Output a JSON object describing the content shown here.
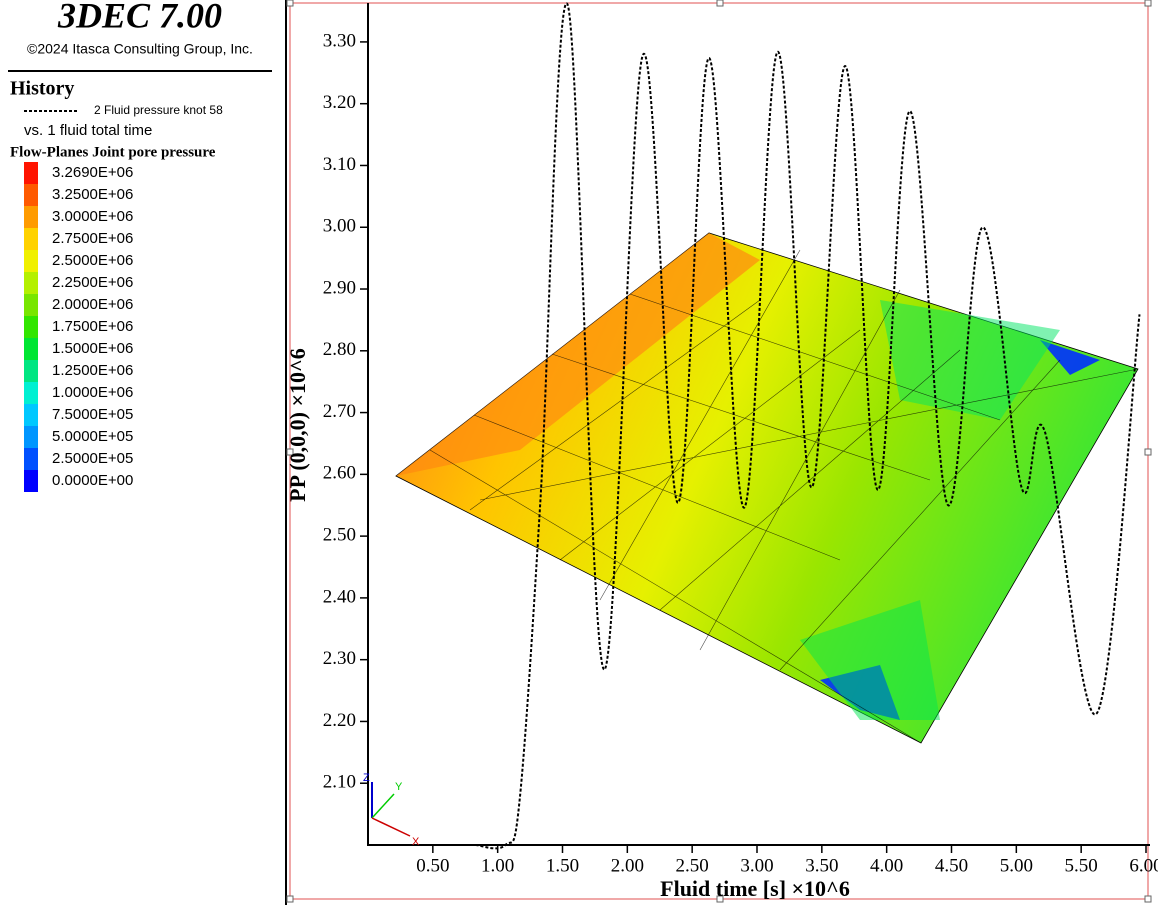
{
  "chart_data": {
    "type": "line",
    "title": "3DEC 7.00",
    "subtitle": "©2024 Itasca Consulting Group, Inc.",
    "history_label": "History",
    "vs_label": "vs. 1 fluid total time",
    "x_label": "Fluid time [s] ×10^6",
    "y_label": "PP (0,0,0) ×10^6",
    "triad_labels": [
      "X",
      "Y",
      "Z"
    ],
    "x": [
      0.83,
      1.06,
      1.17,
      1.33,
      1.54,
      1.82,
      2.12,
      2.39,
      2.63,
      2.9,
      3.16,
      3.42,
      3.68,
      3.93,
      4.18,
      4.47,
      4.74,
      5.04,
      5.22,
      5.62,
      5.95
    ],
    "series": [
      {
        "name": "2 Fluid pressure knot 58",
        "color": "#000000",
        "values": [
          2.0,
          2.0,
          2.074,
          2.559,
          3.36,
          2.284,
          3.279,
          2.554,
          3.274,
          2.546,
          3.284,
          2.579,
          3.261,
          2.575,
          3.188,
          2.551,
          3.0,
          2.579,
          2.669,
          2.213,
          2.859
        ]
      }
    ],
    "xlim": [
      0,
      6.0
    ],
    "ylim": [
      2.0,
      3.363
    ],
    "xticks": [
      {
        "value": 0.5,
        "label": "0.50"
      },
      {
        "value": 1.0,
        "label": "1.00"
      },
      {
        "value": 1.5,
        "label": "1.50"
      },
      {
        "value": 2.0,
        "label": "2.00"
      },
      {
        "value": 2.5,
        "label": "2.50"
      },
      {
        "value": 3.0,
        "label": "3.00"
      },
      {
        "value": 3.5,
        "label": "3.50"
      },
      {
        "value": 4.0,
        "label": "4.00"
      },
      {
        "value": 4.5,
        "label": "4.50"
      },
      {
        "value": 5.0,
        "label": "5.00"
      },
      {
        "value": 5.5,
        "label": "5.50"
      },
      {
        "value": 6.0,
        "label": "6.00"
      }
    ],
    "yticks": [
      {
        "value": 2.1,
        "label": "2.10"
      },
      {
        "value": 2.2,
        "label": "2.20"
      },
      {
        "value": 2.3,
        "label": "2.30"
      },
      {
        "value": 2.4,
        "label": "2.40"
      },
      {
        "value": 2.5,
        "label": "2.50"
      },
      {
        "value": 2.6,
        "label": "2.60"
      },
      {
        "value": 2.7,
        "label": "2.70"
      },
      {
        "value": 2.8,
        "label": "2.80"
      },
      {
        "value": 2.9,
        "label": "2.90"
      },
      {
        "value": 3.0,
        "label": "3.00"
      },
      {
        "value": 3.1,
        "label": "3.10"
      },
      {
        "value": 3.2,
        "label": "3.20"
      },
      {
        "value": 3.3,
        "label": "3.30"
      }
    ],
    "contour": {
      "title": "Flow-Planes Joint pore pressure",
      "levels": [
        {
          "value": 3269000,
          "label": "3.2690E+06",
          "color": "#ff1400"
        },
        {
          "value": 3250000,
          "label": "3.2500E+06",
          "color": "#ff5a00"
        },
        {
          "value": 3000000,
          "label": "3.0000E+06",
          "color": "#ff9b00"
        },
        {
          "value": 2750000,
          "label": "2.7500E+06",
          "color": "#ffd200"
        },
        {
          "value": 2500000,
          "label": "2.5000E+06",
          "color": "#f0f000"
        },
        {
          "value": 2250000,
          "label": "2.2500E+06",
          "color": "#b4f000"
        },
        {
          "value": 2000000,
          "label": "2.0000E+06",
          "color": "#78e600"
        },
        {
          "value": 1750000,
          "label": "1.7500E+06",
          "color": "#32e600"
        },
        {
          "value": 1500000,
          "label": "1.5000E+06",
          "color": "#00e632"
        },
        {
          "value": 1250000,
          "label": "1.2500E+06",
          "color": "#00e682"
        },
        {
          "value": 1000000,
          "label": "1.0000E+06",
          "color": "#00f0d2"
        },
        {
          "value": 750000,
          "label": "7.5000E+05",
          "color": "#00c8ff"
        },
        {
          "value": 500000,
          "label": "5.0000E+05",
          "color": "#0096ff"
        },
        {
          "value": 250000,
          "label": "2.5000E+05",
          "color": "#0050ff"
        },
        {
          "value": 0,
          "label": "0.0000E+00",
          "color": "#0000ff"
        }
      ]
    }
  }
}
